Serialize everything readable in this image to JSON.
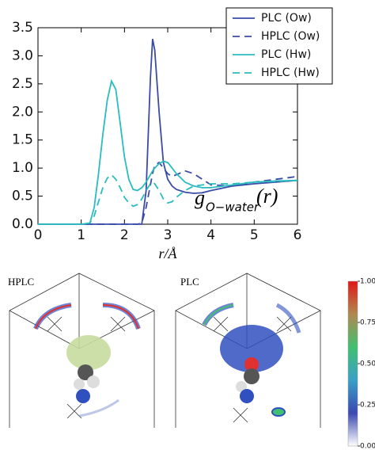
{
  "chart_data": [
    {
      "type": "line",
      "x_label": "r/Å",
      "annotation": {
        "text": "g",
        "subscript": "O−water",
        "suffix": "(r)"
      },
      "x": [
        0,
        1.0,
        1.2,
        1.3,
        1.4,
        1.5,
        1.6,
        1.7,
        1.8,
        1.9,
        2.0,
        2.1,
        2.2,
        2.3,
        2.4,
        2.5,
        2.6,
        2.65,
        2.7,
        2.8,
        2.9,
        3.0,
        3.1,
        3.2,
        3.4,
        3.6,
        3.8,
        4.0,
        4.5,
        5.0,
        5.5,
        6.0
      ],
      "series": [
        {
          "name": "PLC (Ow)",
          "color": "#3b4ba8",
          "linestyle": "solid",
          "values": [
            0,
            0,
            0,
            0,
            0,
            0,
            0,
            0,
            0,
            0,
            0,
            0,
            0,
            0,
            0,
            0.6,
            2.6,
            3.3,
            3.1,
            2.0,
            1.1,
            0.8,
            0.68,
            0.62,
            0.57,
            0.55,
            0.56,
            0.6,
            0.68,
            0.72,
            0.75,
            0.78
          ]
        },
        {
          "name": "HPLC (Ow)",
          "color": "#3b4ba8",
          "linestyle": "dashed",
          "values": [
            0,
            0,
            0,
            0,
            0,
            0,
            0,
            0,
            0,
            0,
            0,
            0,
            0,
            0,
            0.02,
            0.3,
            0.7,
            0.9,
            1.05,
            1.1,
            1.0,
            0.9,
            0.85,
            0.88,
            0.95,
            0.9,
            0.8,
            0.7,
            0.68,
            0.75,
            0.8,
            0.85
          ]
        },
        {
          "name": "PLC (Hw)",
          "color": "#2bbcbf",
          "linestyle": "solid",
          "values": [
            0,
            0,
            0.02,
            0.3,
            0.9,
            1.6,
            2.2,
            2.55,
            2.4,
            1.8,
            1.2,
            0.8,
            0.62,
            0.6,
            0.65,
            0.75,
            0.88,
            0.95,
            1.0,
            1.08,
            1.12,
            1.1,
            1.0,
            0.9,
            0.75,
            0.68,
            0.65,
            0.65,
            0.7,
            0.75,
            0.77,
            0.78
          ]
        },
        {
          "name": "HPLC (Hw)",
          "color": "#2bbcbf",
          "linestyle": "dashed",
          "values": [
            0,
            0,
            0.02,
            0.15,
            0.4,
            0.65,
            0.82,
            0.88,
            0.8,
            0.65,
            0.48,
            0.38,
            0.32,
            0.35,
            0.45,
            0.6,
            0.72,
            0.75,
            0.72,
            0.6,
            0.45,
            0.38,
            0.4,
            0.48,
            0.6,
            0.68,
            0.7,
            0.72,
            0.72,
            0.75,
            0.76,
            0.78
          ]
        }
      ],
      "xlim": [
        0,
        6
      ],
      "xticks": [
        0,
        1,
        2,
        3,
        4,
        5,
        6
      ],
      "ylim": [
        0,
        3.5
      ],
      "yticks": [
        {
          "value": 0,
          "label": "0.0"
        },
        0.5,
        {
          "value": 1,
          "label": "1.0"
        },
        1.5,
        {
          "value": 2,
          "label": "2.0"
        },
        2.5,
        {
          "value": 3,
          "label": "3.0"
        },
        3.5
      ],
      "legend": "upper right"
    },
    {
      "type": "colorbar",
      "panel_titles": [
        "HPLC",
        "PLC"
      ],
      "colors": [
        "#ffffff",
        "#3a48b0",
        "#3aa0c8",
        "#40c070",
        "#b08850",
        "#e01818"
      ],
      "ylim": [
        0,
        1
      ],
      "yticks": [
        {
          "value": 0,
          "label": "0.00"
        },
        {
          "value": 0.25,
          "label": "0.25"
        },
        {
          "value": 0.5,
          "label": "0.50"
        },
        {
          "value": 0.75,
          "label": "0.75"
        },
        {
          "value": 1,
          "label": "1.00"
        }
      ]
    }
  ]
}
